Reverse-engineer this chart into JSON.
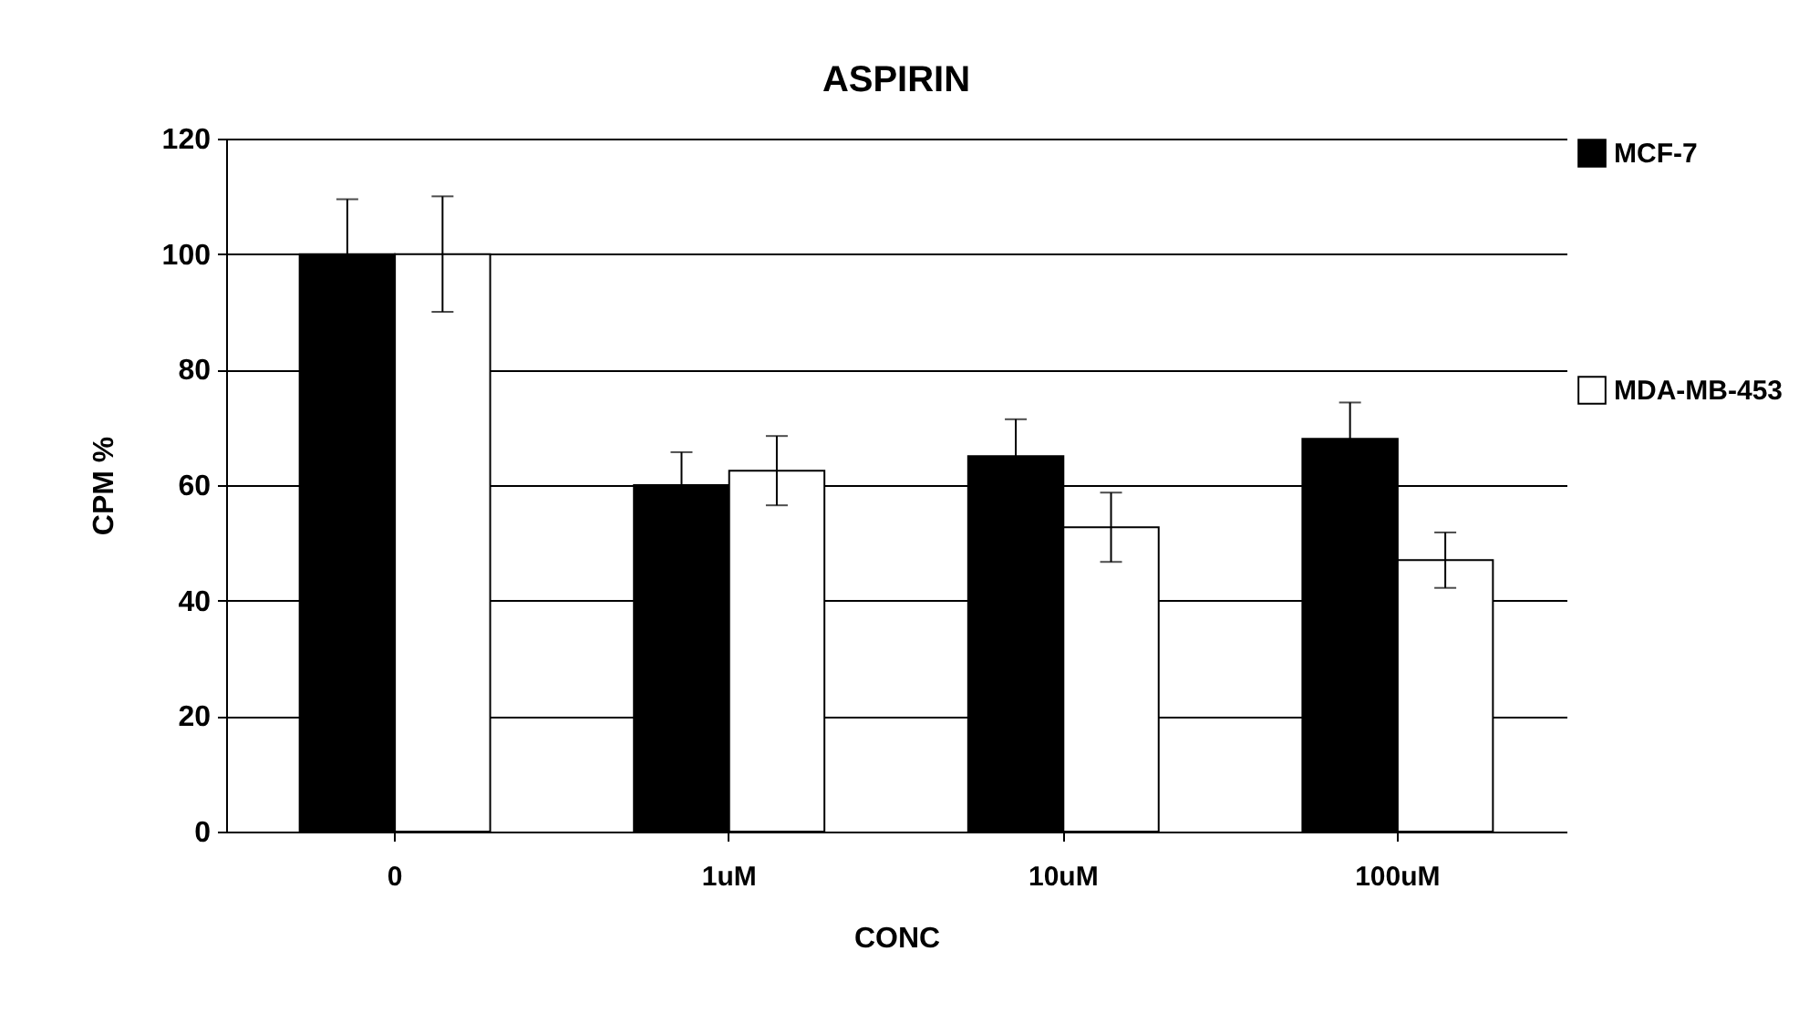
{
  "chart_data": {
    "type": "bar",
    "title": "ASPIRIN",
    "xlabel": "CONC",
    "ylabel": "CPM %",
    "categories": [
      "0",
      "1uM",
      "10uM",
      "100uM"
    ],
    "series": [
      {
        "name": "MCF-7",
        "color": "#000000",
        "values": [
          100,
          60,
          65,
          68
        ],
        "errors": [
          9.5,
          5.7,
          6.4,
          6.3
        ]
      },
      {
        "name": "MDA-MB-453",
        "color": "#ffffff",
        "values": [
          100,
          62.5,
          52.7,
          47
        ],
        "errors": [
          10,
          6,
          6,
          4.8
        ]
      }
    ],
    "ylim": [
      0,
      120
    ],
    "yticks": [
      0,
      20,
      40,
      60,
      80,
      100,
      120
    ],
    "grid": "y",
    "legend": "right"
  }
}
